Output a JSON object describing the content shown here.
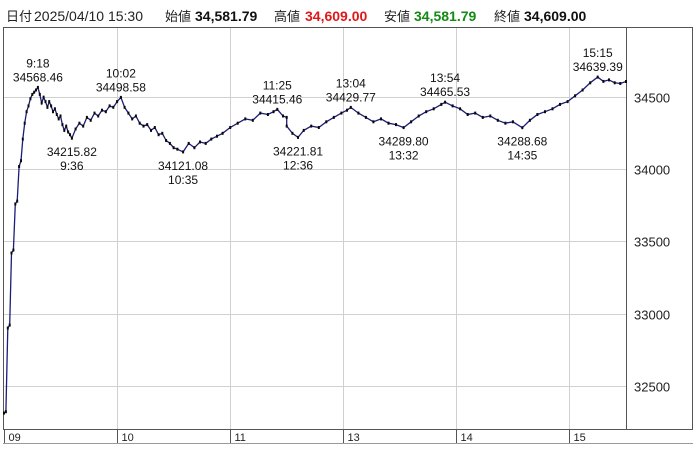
{
  "header": {
    "date_label": "日付",
    "date_value": "2025/04/10 15:30",
    "open_label": "始値",
    "open_value": "34,581.79",
    "high_label": "高値",
    "high_value": "34,609.00",
    "low_label": "安値",
    "low_value": "34,581.79",
    "close_label": "終値",
    "close_value": "34,609.00",
    "colors": {
      "text": "#222222",
      "high": "#e01818",
      "low": "#138a13",
      "value": "#111111"
    }
  },
  "chart_data": {
    "type": "line",
    "x_ticks": [
      "09",
      "10",
      "11",
      "13",
      "14",
      "15"
    ],
    "y_ticks": [
      32500,
      33000,
      33500,
      34000,
      34500
    ],
    "ylim": [
      32200,
      34980
    ],
    "series": [
      {
        "points": [
          [
            "09:00",
            32310
          ],
          [
            "09:01",
            32320
          ],
          [
            "09:02",
            32900
          ],
          [
            "09:03",
            32920
          ],
          [
            "09:04",
            33420
          ],
          [
            "09:05",
            33440
          ],
          [
            "09:06",
            33760
          ],
          [
            "09:07",
            33780
          ],
          [
            "09:08",
            34020
          ],
          [
            "09:09",
            34060
          ],
          [
            "09:10",
            34210
          ],
          [
            "09:11",
            34320
          ],
          [
            "09:12",
            34400
          ],
          [
            "09:13",
            34440
          ],
          [
            "09:14",
            34490
          ],
          [
            "09:15",
            34520
          ],
          [
            "09:16",
            34535
          ],
          [
            "09:17",
            34550
          ],
          [
            "09:18",
            34568.46
          ],
          [
            "09:19",
            34520
          ],
          [
            "09:20",
            34460
          ],
          [
            "09:21",
            34500
          ],
          [
            "09:22",
            34470
          ],
          [
            "09:23",
            34430
          ],
          [
            "09:24",
            34470
          ],
          [
            "09:25",
            34440
          ],
          [
            "09:26",
            34400
          ],
          [
            "09:27",
            34420
          ],
          [
            "09:28",
            34380
          ],
          [
            "09:29",
            34350
          ],
          [
            "09:30",
            34370
          ],
          [
            "09:31",
            34310
          ],
          [
            "09:32",
            34270
          ],
          [
            "09:33",
            34300
          ],
          [
            "09:34",
            34260
          ],
          [
            "09:35",
            34240
          ],
          [
            "09:36",
            34215.82
          ],
          [
            "09:38",
            34280
          ],
          [
            "09:40",
            34320
          ],
          [
            "09:42",
            34300
          ],
          [
            "09:44",
            34360
          ],
          [
            "09:46",
            34340
          ],
          [
            "09:48",
            34390
          ],
          [
            "09:50",
            34370
          ],
          [
            "09:52",
            34410
          ],
          [
            "09:54",
            34400
          ],
          [
            "09:56",
            34440
          ],
          [
            "09:58",
            34430
          ],
          [
            "10:00",
            34470
          ],
          [
            "10:02",
            34498.58
          ],
          [
            "10:04",
            34430
          ],
          [
            "10:06",
            34390
          ],
          [
            "10:08",
            34350
          ],
          [
            "10:10",
            34370
          ],
          [
            "10:12",
            34320
          ],
          [
            "10:14",
            34300
          ],
          [
            "10:16",
            34310
          ],
          [
            "10:18",
            34270
          ],
          [
            "10:20",
            34290
          ],
          [
            "10:22",
            34240
          ],
          [
            "10:24",
            34250
          ],
          [
            "10:26",
            34200
          ],
          [
            "10:28",
            34180
          ],
          [
            "10:30",
            34150
          ],
          [
            "10:32",
            34140
          ],
          [
            "10:35",
            34121.08
          ],
          [
            "10:38",
            34180
          ],
          [
            "10:41",
            34150
          ],
          [
            "10:44",
            34190
          ],
          [
            "10:47",
            34180
          ],
          [
            "10:50",
            34210
          ],
          [
            "10:53",
            34230
          ],
          [
            "10:56",
            34250
          ],
          [
            "11:00",
            34290
          ],
          [
            "11:04",
            34320
          ],
          [
            "11:08",
            34350
          ],
          [
            "11:12",
            34340
          ],
          [
            "11:16",
            34390
          ],
          [
            "11:20",
            34380
          ],
          [
            "11:23",
            34400
          ],
          [
            "11:25",
            34415.46
          ],
          [
            "11:28",
            34370
          ],
          [
            "11:30",
            34360
          ],
          [
            "12:30",
            34300
          ],
          [
            "12:33",
            34250
          ],
          [
            "12:36",
            34221.81
          ],
          [
            "12:39",
            34270
          ],
          [
            "12:43",
            34300
          ],
          [
            "12:47",
            34290
          ],
          [
            "12:51",
            34330
          ],
          [
            "12:55",
            34360
          ],
          [
            "12:59",
            34390
          ],
          [
            "13:02",
            34410
          ],
          [
            "13:04",
            34429.77
          ],
          [
            "13:08",
            34390
          ],
          [
            "13:12",
            34360
          ],
          [
            "13:16",
            34330
          ],
          [
            "13:20",
            34350
          ],
          [
            "13:24",
            34320
          ],
          [
            "13:28",
            34310
          ],
          [
            "13:32",
            34289.8
          ],
          [
            "13:36",
            34330
          ],
          [
            "13:40",
            34370
          ],
          [
            "13:44",
            34400
          ],
          [
            "13:48",
            34420
          ],
          [
            "13:52",
            34450
          ],
          [
            "13:54",
            34465.53
          ],
          [
            "13:58",
            34440
          ],
          [
            "14:02",
            34420
          ],
          [
            "14:06",
            34380
          ],
          [
            "14:10",
            34390
          ],
          [
            "14:14",
            34360
          ],
          [
            "14:18",
            34370
          ],
          [
            "14:22",
            34340
          ],
          [
            "14:26",
            34320
          ],
          [
            "14:30",
            34330
          ],
          [
            "14:35",
            34288.68
          ],
          [
            "14:39",
            34340
          ],
          [
            "14:43",
            34380
          ],
          [
            "14:47",
            34400
          ],
          [
            "14:51",
            34420
          ],
          [
            "14:55",
            34450
          ],
          [
            "14:59",
            34470
          ],
          [
            "15:03",
            34510
          ],
          [
            "15:07",
            34550
          ],
          [
            "15:11",
            34600
          ],
          [
            "15:15",
            34639.39
          ],
          [
            "15:18",
            34610
          ],
          [
            "15:21",
            34620
          ],
          [
            "15:24",
            34600
          ],
          [
            "15:27",
            34595
          ],
          [
            "15:30",
            34609.0
          ]
        ]
      }
    ],
    "annotations": [
      {
        "time": "9:18",
        "value": "34568.46",
        "pos": "above"
      },
      {
        "time": "9:36",
        "value": "34215.82",
        "pos": "below"
      },
      {
        "time": "10:02",
        "value": "34498.58",
        "pos": "above"
      },
      {
        "time": "10:35",
        "value": "34121.08",
        "pos": "below"
      },
      {
        "time": "11:25",
        "value": "34415.46",
        "pos": "above"
      },
      {
        "time": "12:36",
        "value": "34221.81",
        "pos": "below"
      },
      {
        "time": "13:04",
        "value": "34429.77",
        "pos": "above"
      },
      {
        "time": "13:32",
        "value": "34289.80",
        "pos": "below"
      },
      {
        "time": "13:54",
        "value": "34465.53",
        "pos": "above"
      },
      {
        "time": "14:35",
        "value": "34288.68",
        "pos": "below"
      },
      {
        "time": "15:15",
        "value": "34639.39",
        "pos": "above"
      }
    ],
    "grid": true,
    "colors": {
      "line": "#1c1c7c",
      "marker": "#0a0a0a",
      "grid": "#d0d0d0",
      "axis": "#555555"
    }
  }
}
